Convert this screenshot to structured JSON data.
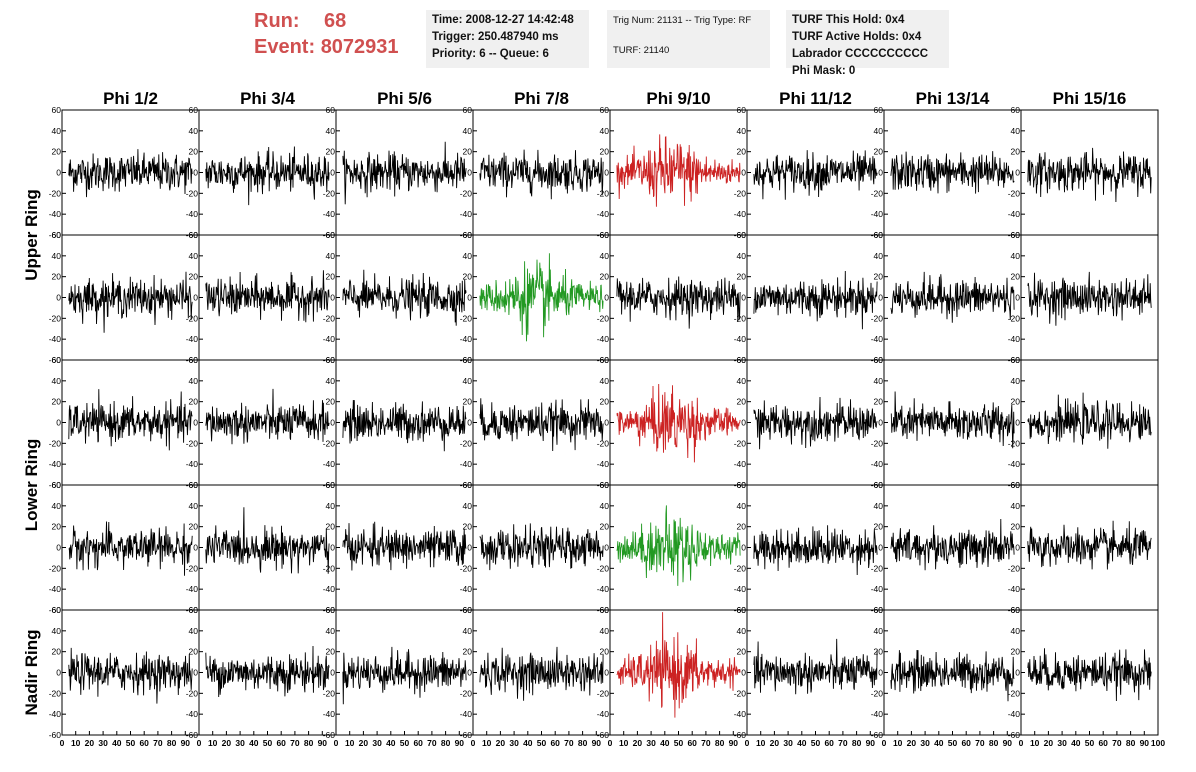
{
  "header": {
    "run_label": "Run:",
    "run_value": "68",
    "event_label": "Event:",
    "event_value": "8072931",
    "time_line": "Time: 2008-12-27 14:42:48",
    "trigger_line": "Trigger: 250.487940 ms",
    "priority_line": "Priority: 6 -- Queue: 6",
    "trig_line": "Trig Num: 21131 -- Trig Type: RF",
    "turf_line": "TURF: 21140",
    "turf_hold_line": "TURF This Hold: 0x4",
    "turf_active_line": "TURF Active Holds: 0x4",
    "labrador_line": "Labrador CCCCCCCCCC",
    "phi_mask_line": "Phi Mask: 0"
  },
  "chart_data": {
    "type": "line",
    "title": "",
    "columns": [
      "Phi 1/2",
      "Phi 3/4",
      "Phi 5/6",
      "Phi 7/8",
      "Phi 9/10",
      "Phi 11/12",
      "Phi 13/14",
      "Phi 15/16"
    ],
    "row_groups": [
      {
        "label": "Upper Ring",
        "rows": [
          0,
          1
        ]
      },
      {
        "label": "Lower Ring",
        "rows": [
          2,
          3
        ]
      },
      {
        "label": "Nadir Ring",
        "rows": [
          4
        ]
      }
    ],
    "rows": 5,
    "ylim": [
      -60,
      60
    ],
    "y_ticks": [
      60,
      40,
      20,
      0,
      -20,
      -40,
      -60
    ],
    "xlim": [
      0,
      100
    ],
    "x_tick_labels": [
      "0",
      "10",
      "20",
      "30",
      "40",
      "50",
      "60",
      "70",
      "80",
      "90",
      "100"
    ],
    "grid": false,
    "trace_colors": {
      "normal": "#000000",
      "triggered_red": "#cc2222",
      "triggered_green": "#229922"
    },
    "highlighted_panels": [
      {
        "row": 0,
        "col": 4,
        "color": "triggered_red"
      },
      {
        "row": 1,
        "col": 3,
        "color": "triggered_green"
      },
      {
        "row": 2,
        "col": 4,
        "color": "triggered_red"
      },
      {
        "row": 3,
        "col": 4,
        "color": "triggered_green"
      },
      {
        "row": 4,
        "col": 4,
        "color": "triggered_red"
      }
    ],
    "samples_per_trace": 260,
    "normal_amplitude": 20,
    "highlighted_amplitude": 32
  }
}
